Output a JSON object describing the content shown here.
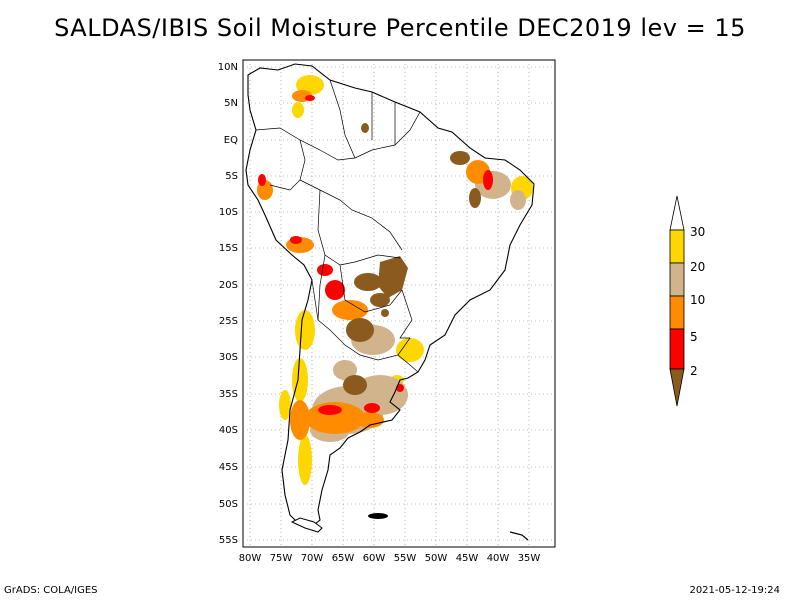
{
  "title": "SALDAS/IBIS Soil Moisture Percentile DEC2019 lev = 15",
  "footer": {
    "left": "GrADS: COLA/IGES",
    "right": "2021-05-12-19:24"
  },
  "axes": {
    "lat_labels": [
      "10N",
      "5N",
      "EQ",
      "5S",
      "10S",
      "15S",
      "20S",
      "25S",
      "30S",
      "35S",
      "40S",
      "45S",
      "50S",
      "55S"
    ],
    "lon_labels": [
      "80W",
      "75W",
      "70W",
      "65W",
      "60W",
      "55W",
      "50W",
      "45W",
      "40W",
      "35W"
    ]
  },
  "legend": {
    "labels": [
      "2",
      "5",
      "10",
      "20",
      "30"
    ],
    "colors": {
      "below_2": "#8b5a1e",
      "2_5": "#ff0000",
      "5_10": "#ff8c00",
      "10_20": "#d2b48c",
      "20_30": "#ffd700",
      "above_30": "#ffffff"
    }
  }
}
